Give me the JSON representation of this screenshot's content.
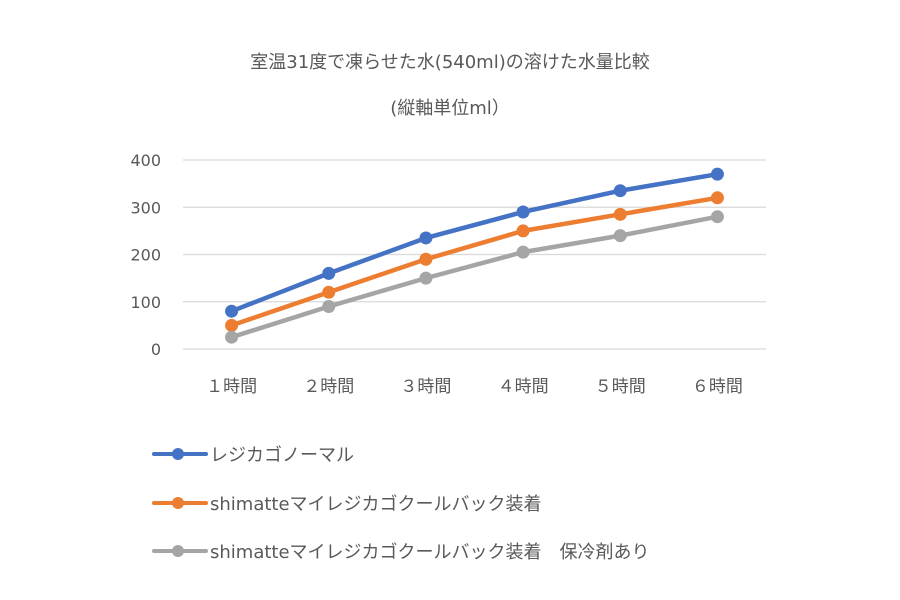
{
  "chart_data": {
    "type": "line",
    "title": "室温31度で凍らせた水(540ml)の溶けた水量比較",
    "subtitle": "(縦軸単位ml）",
    "xlabel": "",
    "ylabel": "",
    "categories": [
      "１時間",
      "２時間",
      "３時間",
      "４時間",
      "５時間",
      "６時間"
    ],
    "ylim": [
      0,
      400
    ],
    "yticks": [
      0,
      100,
      200,
      300,
      400
    ],
    "ytick_labels": [
      "0",
      "100",
      "200",
      "300",
      "400"
    ],
    "grid": true,
    "legend_position": "bottom",
    "series": [
      {
        "name": "レジカゴノーマル",
        "color": "#4472C4",
        "values": [
          80,
          160,
          235,
          290,
          335,
          370
        ]
      },
      {
        "name": "shimatteマイレジカゴクールバック装着",
        "color": "#ED7D31",
        "values": [
          50,
          120,
          190,
          250,
          285,
          320
        ]
      },
      {
        "name": "shimatteマイレジカゴクールバック装着　保冷剤あり",
        "color": "#A5A5A5",
        "values": [
          25,
          90,
          150,
          205,
          240,
          280
        ]
      }
    ]
  }
}
